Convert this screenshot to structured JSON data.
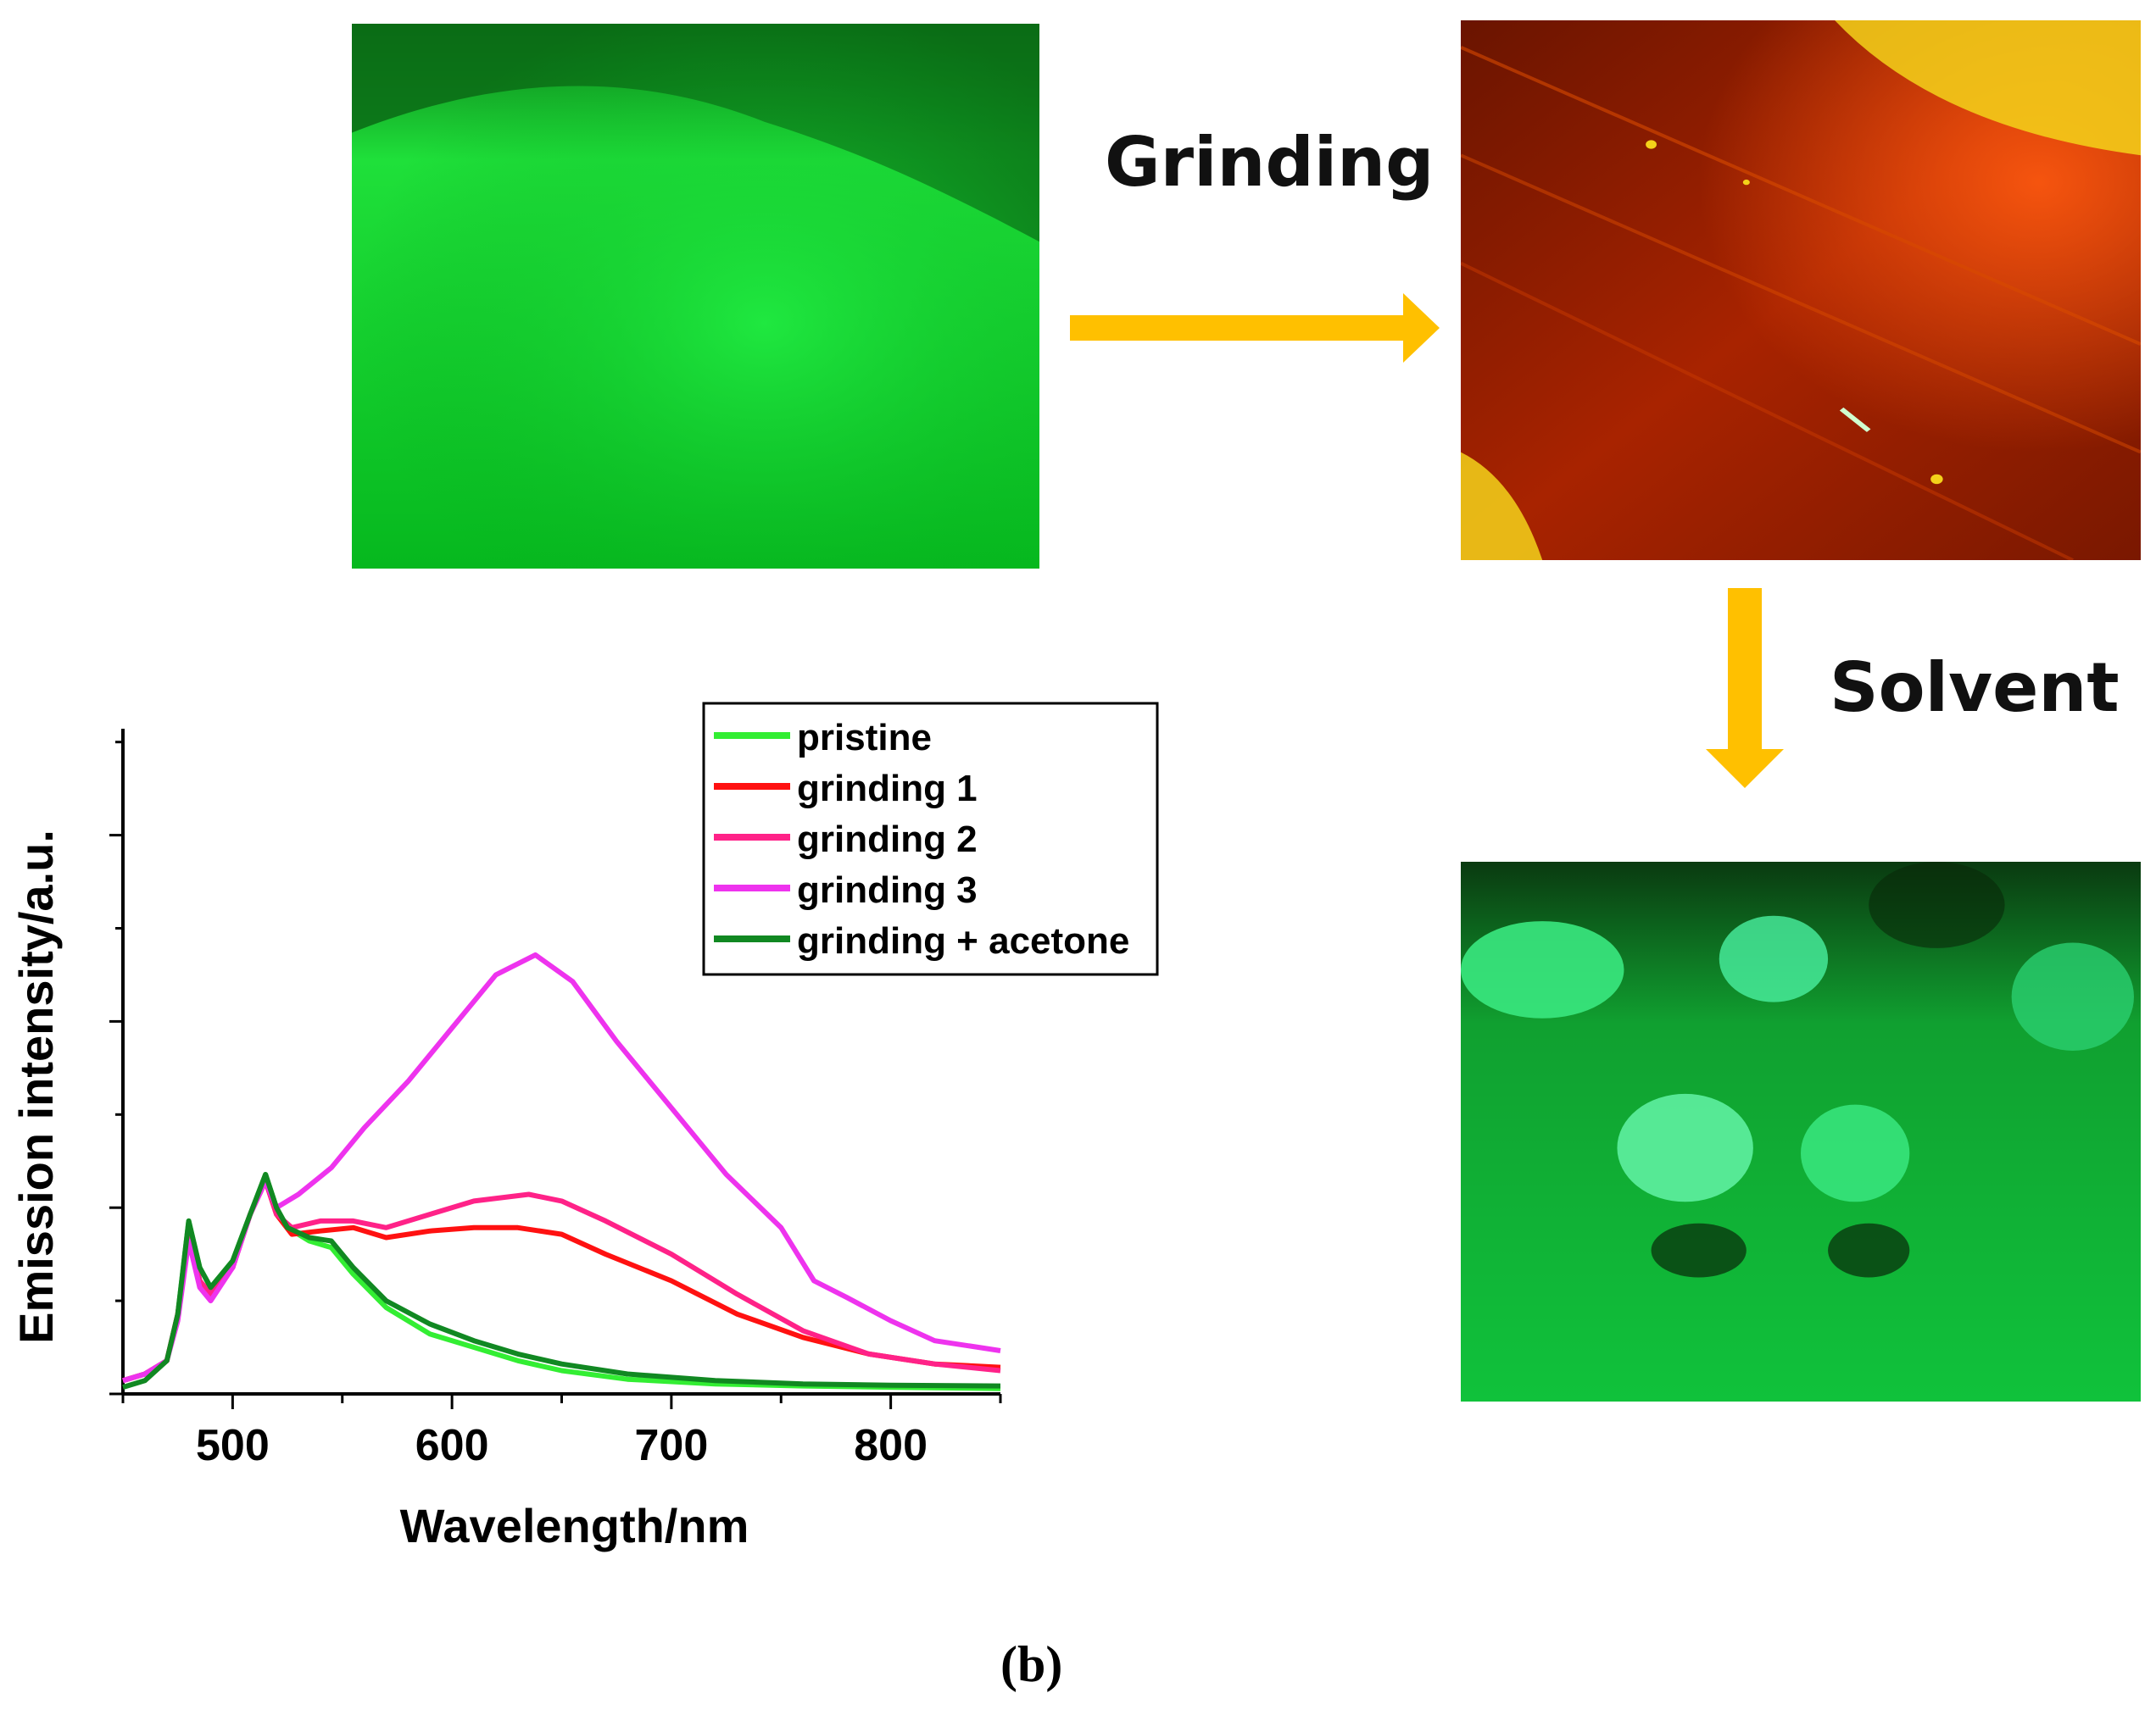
{
  "labels": {
    "grinding": "Grinding",
    "solvent": "Solvent",
    "panel": "(b)"
  },
  "photos": [
    {
      "name": "pristine",
      "colors": [
        "#06b81e",
        "#1fe03a",
        "#0c7a18"
      ]
    },
    {
      "name": "ground",
      "colors": [
        "#a82300",
        "#d84a00",
        "#f3d21a"
      ]
    },
    {
      "name": "solvent",
      "colors": [
        "#10c23b",
        "#5ef0a0",
        "#0a3a10"
      ]
    }
  ],
  "arrow_color": "#ffc000",
  "chart_data": {
    "type": "line",
    "xlabel": "Wavelength/nm",
    "ylabel": "Emission intensity/a.u.",
    "xlim": [
      450,
      850
    ],
    "ylim": [
      0,
      1.0
    ],
    "xticks": [
      500,
      600,
      700,
      800
    ],
    "grid": false,
    "legend_position": "top-right",
    "series": [
      {
        "name": "pristine",
        "color": "#33ee33",
        "points": [
          [
            450,
            0.02
          ],
          [
            460,
            0.03
          ],
          [
            470,
            0.05
          ],
          [
            475,
            0.12
          ],
          [
            480,
            0.26
          ],
          [
            485,
            0.19
          ],
          [
            490,
            0.16
          ],
          [
            500,
            0.2
          ],
          [
            508,
            0.27
          ],
          [
            515,
            0.33
          ],
          [
            520,
            0.28
          ],
          [
            525,
            0.25
          ],
          [
            535,
            0.23
          ],
          [
            545,
            0.22
          ],
          [
            555,
            0.18
          ],
          [
            570,
            0.13
          ],
          [
            590,
            0.09
          ],
          [
            610,
            0.07
          ],
          [
            630,
            0.05
          ],
          [
            650,
            0.035
          ],
          [
            680,
            0.022
          ],
          [
            720,
            0.015
          ],
          [
            760,
            0.012
          ],
          [
            800,
            0.01
          ],
          [
            850,
            0.008
          ]
        ]
      },
      {
        "name": "grinding 1",
        "color": "#ff1111",
        "points": [
          [
            450,
            0.02
          ],
          [
            460,
            0.03
          ],
          [
            470,
            0.05
          ],
          [
            475,
            0.12
          ],
          [
            480,
            0.24
          ],
          [
            485,
            0.17
          ],
          [
            490,
            0.15
          ],
          [
            500,
            0.19
          ],
          [
            508,
            0.27
          ],
          [
            515,
            0.32
          ],
          [
            520,
            0.27
          ],
          [
            527,
            0.24
          ],
          [
            540,
            0.245
          ],
          [
            555,
            0.25
          ],
          [
            570,
            0.235
          ],
          [
            590,
            0.245
          ],
          [
            610,
            0.25
          ],
          [
            630,
            0.25
          ],
          [
            650,
            0.24
          ],
          [
            670,
            0.21
          ],
          [
            700,
            0.17
          ],
          [
            730,
            0.12
          ],
          [
            760,
            0.085
          ],
          [
            790,
            0.06
          ],
          [
            820,
            0.045
          ],
          [
            850,
            0.04
          ]
        ]
      },
      {
        "name": "grinding 2",
        "color": "#ff2288",
        "points": [
          [
            450,
            0.02
          ],
          [
            460,
            0.03
          ],
          [
            470,
            0.05
          ],
          [
            475,
            0.12
          ],
          [
            480,
            0.24
          ],
          [
            485,
            0.17
          ],
          [
            490,
            0.15
          ],
          [
            500,
            0.19
          ],
          [
            508,
            0.27
          ],
          [
            515,
            0.32
          ],
          [
            520,
            0.27
          ],
          [
            527,
            0.25
          ],
          [
            540,
            0.26
          ],
          [
            555,
            0.26
          ],
          [
            570,
            0.25
          ],
          [
            590,
            0.27
          ],
          [
            610,
            0.29
          ],
          [
            635,
            0.3
          ],
          [
            650,
            0.29
          ],
          [
            670,
            0.26
          ],
          [
            700,
            0.21
          ],
          [
            730,
            0.15
          ],
          [
            760,
            0.095
          ],
          [
            790,
            0.06
          ],
          [
            820,
            0.045
          ],
          [
            850,
            0.035
          ]
        ]
      },
      {
        "name": "grinding 3",
        "color": "#ee33ee",
        "points": [
          [
            450,
            0.02
          ],
          [
            460,
            0.03
          ],
          [
            470,
            0.05
          ],
          [
            475,
            0.11
          ],
          [
            480,
            0.23
          ],
          [
            485,
            0.16
          ],
          [
            490,
            0.14
          ],
          [
            500,
            0.19
          ],
          [
            508,
            0.27
          ],
          [
            515,
            0.32
          ],
          [
            520,
            0.28
          ],
          [
            530,
            0.3
          ],
          [
            545,
            0.34
          ],
          [
            560,
            0.4
          ],
          [
            580,
            0.47
          ],
          [
            600,
            0.55
          ],
          [
            620,
            0.63
          ],
          [
            638,
            0.66
          ],
          [
            655,
            0.62
          ],
          [
            675,
            0.53
          ],
          [
            700,
            0.43
          ],
          [
            725,
            0.33
          ],
          [
            750,
            0.25
          ],
          [
            765,
            0.17
          ],
          [
            780,
            0.145
          ],
          [
            800,
            0.11
          ],
          [
            820,
            0.08
          ],
          [
            840,
            0.07
          ],
          [
            850,
            0.065
          ]
        ]
      },
      {
        "name": "grinding + acetone",
        "color": "#118822",
        "points": [
          [
            450,
            0.01
          ],
          [
            460,
            0.02
          ],
          [
            470,
            0.05
          ],
          [
            475,
            0.12
          ],
          [
            480,
            0.26
          ],
          [
            485,
            0.19
          ],
          [
            490,
            0.16
          ],
          [
            500,
            0.2
          ],
          [
            508,
            0.27
          ],
          [
            515,
            0.33
          ],
          [
            520,
            0.28
          ],
          [
            525,
            0.25
          ],
          [
            535,
            0.235
          ],
          [
            545,
            0.23
          ],
          [
            555,
            0.19
          ],
          [
            570,
            0.14
          ],
          [
            590,
            0.105
          ],
          [
            610,
            0.08
          ],
          [
            630,
            0.06
          ],
          [
            650,
            0.045
          ],
          [
            680,
            0.03
          ],
          [
            720,
            0.02
          ],
          [
            760,
            0.015
          ],
          [
            800,
            0.013
          ],
          [
            850,
            0.012
          ]
        ]
      }
    ]
  }
}
